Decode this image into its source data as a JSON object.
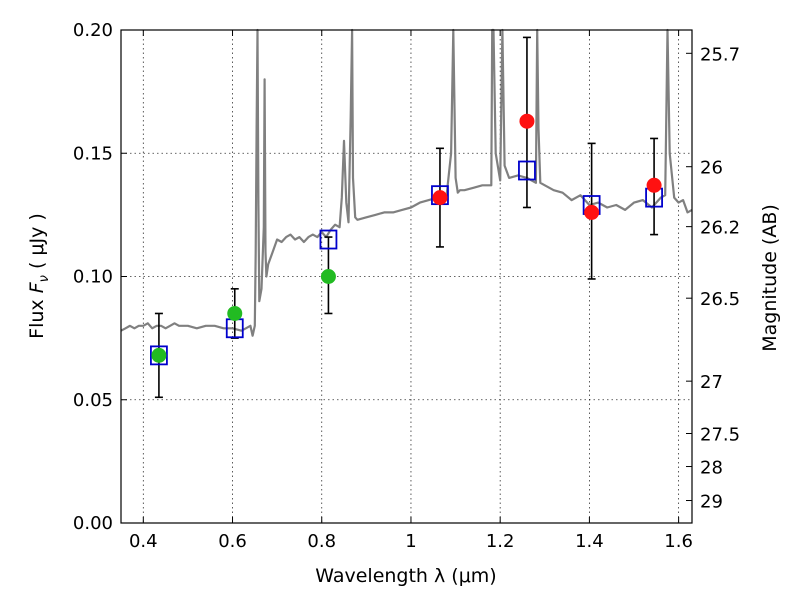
{
  "chart_data": {
    "type": "scatter",
    "xlabel": "Wavelength  λ (μm)",
    "ylabel": "Flux  F_ν  ( μJy )",
    "ylabel_parts": {
      "pre": "Flux  ",
      "var": "F",
      "sub": "ν",
      "post": "  ( μJy )"
    },
    "right_ylabel": "Magnitude (AB)",
    "xlim": [
      0.35,
      1.63
    ],
    "ylim": [
      0.0,
      0.2
    ],
    "xticks": [
      0.4,
      0.6,
      0.8,
      1.0,
      1.2,
      1.4,
      1.6
    ],
    "xtick_labels": [
      "0.4",
      "0.6",
      "0.8",
      "1",
      "1.2",
      "1.4",
      "1.6"
    ],
    "yticks": [
      0.0,
      0.05,
      0.1,
      0.15,
      0.2
    ],
    "ytick_labels": [
      "0.00",
      "0.05",
      "0.10",
      "0.15",
      "0.20"
    ],
    "right_ticks": [
      {
        "mag": 25.7,
        "label": "25.7"
      },
      {
        "mag": 26.0,
        "label": "26"
      },
      {
        "mag": 26.2,
        "label": "26.2"
      },
      {
        "mag": 26.5,
        "label": "26.5"
      },
      {
        "mag": 27.0,
        "label": "27"
      },
      {
        "mag": 27.5,
        "label": "27.5"
      },
      {
        "mag": 28.0,
        "label": "28"
      },
      {
        "mag": 29.0,
        "label": "29"
      }
    ],
    "grid": true,
    "colors": {
      "model": "#808080",
      "green": "#22bb22",
      "red": "#ff1111",
      "box": "#0000cc",
      "errbar": "#000000"
    },
    "series": [
      {
        "role": "model spectrum",
        "x": [
          0.35,
          0.36,
          0.37,
          0.38,
          0.39,
          0.4,
          0.41,
          0.42,
          0.43,
          0.44,
          0.45,
          0.46,
          0.47,
          0.48,
          0.5,
          0.52,
          0.54,
          0.56,
          0.58,
          0.6,
          0.62,
          0.63,
          0.64,
          0.645,
          0.65,
          0.652,
          0.654,
          0.656,
          0.658,
          0.66,
          0.665,
          0.67,
          0.672,
          0.674,
          0.676,
          0.68,
          0.69,
          0.7,
          0.71,
          0.72,
          0.73,
          0.74,
          0.75,
          0.76,
          0.77,
          0.78,
          0.79,
          0.8,
          0.81,
          0.82,
          0.83,
          0.84,
          0.845,
          0.85,
          0.855,
          0.86,
          0.865,
          0.868,
          0.87,
          0.875,
          0.88,
          0.9,
          0.92,
          0.94,
          0.96,
          0.98,
          1.0,
          1.02,
          1.04,
          1.06,
          1.08,
          1.09,
          1.095,
          1.1,
          1.105,
          1.11,
          1.12,
          1.14,
          1.16,
          1.18,
          1.182,
          1.185,
          1.19,
          1.2,
          1.205,
          1.21,
          1.22,
          1.24,
          1.26,
          1.28,
          1.283,
          1.286,
          1.29,
          1.3,
          1.32,
          1.34,
          1.36,
          1.38,
          1.4,
          1.42,
          1.44,
          1.46,
          1.48,
          1.5,
          1.52,
          1.54,
          1.56,
          1.57,
          1.575,
          1.58,
          1.59,
          1.6,
          1.61,
          1.62,
          1.63
        ],
        "y": [
          0.078,
          0.079,
          0.08,
          0.079,
          0.08,
          0.08,
          0.081,
          0.079,
          0.08,
          0.08,
          0.079,
          0.08,
          0.081,
          0.08,
          0.08,
          0.079,
          0.08,
          0.08,
          0.079,
          0.079,
          0.078,
          0.079,
          0.08,
          0.076,
          0.08,
          0.11,
          0.16,
          0.21,
          0.13,
          0.09,
          0.095,
          0.12,
          0.18,
          0.11,
          0.1,
          0.105,
          0.11,
          0.115,
          0.114,
          0.116,
          0.117,
          0.115,
          0.116,
          0.114,
          0.116,
          0.117,
          0.116,
          0.118,
          0.116,
          0.119,
          0.121,
          0.12,
          0.132,
          0.155,
          0.13,
          0.122,
          0.165,
          0.2,
          0.14,
          0.124,
          0.123,
          0.124,
          0.125,
          0.126,
          0.126,
          0.127,
          0.128,
          0.13,
          0.131,
          0.132,
          0.133,
          0.15,
          0.2,
          0.14,
          0.134,
          0.135,
          0.135,
          0.136,
          0.137,
          0.137,
          0.2,
          0.2,
          0.15,
          0.139,
          0.2,
          0.145,
          0.14,
          0.141,
          0.14,
          0.138,
          0.2,
          0.16,
          0.138,
          0.137,
          0.135,
          0.134,
          0.131,
          0.133,
          0.129,
          0.13,
          0.128,
          0.129,
          0.127,
          0.13,
          0.131,
          0.128,
          0.132,
          0.133,
          0.2,
          0.15,
          0.132,
          0.13,
          0.131,
          0.126,
          0.127
        ]
      },
      {
        "role": "model box points",
        "x": [
          0.435,
          0.605,
          0.815,
          1.065,
          1.26,
          1.405,
          1.545
        ],
        "y": [
          0.068,
          0.079,
          0.115,
          0.133,
          0.143,
          0.129,
          0.132
        ]
      },
      {
        "role": "green points",
        "x": [
          0.435,
          0.605,
          0.815
        ],
        "y": [
          0.068,
          0.085,
          0.1
        ],
        "yerr_low": [
          0.051,
          0.075,
          0.085
        ],
        "yerr_high": [
          0.085,
          0.095,
          0.116
        ]
      },
      {
        "role": "red points",
        "x": [
          1.065,
          1.26,
          1.405,
          1.545
        ],
        "y": [
          0.132,
          0.163,
          0.126,
          0.137
        ],
        "yerr_low": [
          0.112,
          0.128,
          0.099,
          0.117
        ],
        "yerr_high": [
          0.152,
          0.197,
          0.154,
          0.156
        ]
      }
    ]
  }
}
